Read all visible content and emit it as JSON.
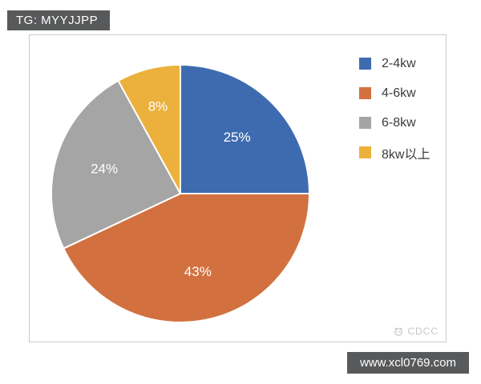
{
  "tag": {
    "label": "TG: MYYJJPP",
    "bg": "#58595B",
    "text_color": "#FFFFFF"
  },
  "watermark": {
    "label": "CDCC",
    "icon": "cdcc-logo-icon",
    "color": "#C6C6C6"
  },
  "footer": {
    "label": "www.xcl0769.com",
    "bg": "#58595B",
    "text_color": "#FFFFFF"
  },
  "chart_data": {
    "type": "pie",
    "title": "",
    "categories": [
      "2-4kw",
      "4-6kw",
      "6-8kw",
      "8kw以上"
    ],
    "values": [
      25,
      43,
      24,
      8
    ],
    "data_labels": [
      "25%",
      "43%",
      "24%",
      "8%"
    ],
    "colors": [
      "#3E6BB0",
      "#D2713F",
      "#A5A5A5",
      "#ECB03C"
    ],
    "data_label_color": "#FFFFFF",
    "slice_separator_color": "#FFFFFF",
    "start_angle_deg": 0,
    "direction": "clockwise",
    "legend_position": "right",
    "legend_text_color": "#3B3B3B"
  }
}
